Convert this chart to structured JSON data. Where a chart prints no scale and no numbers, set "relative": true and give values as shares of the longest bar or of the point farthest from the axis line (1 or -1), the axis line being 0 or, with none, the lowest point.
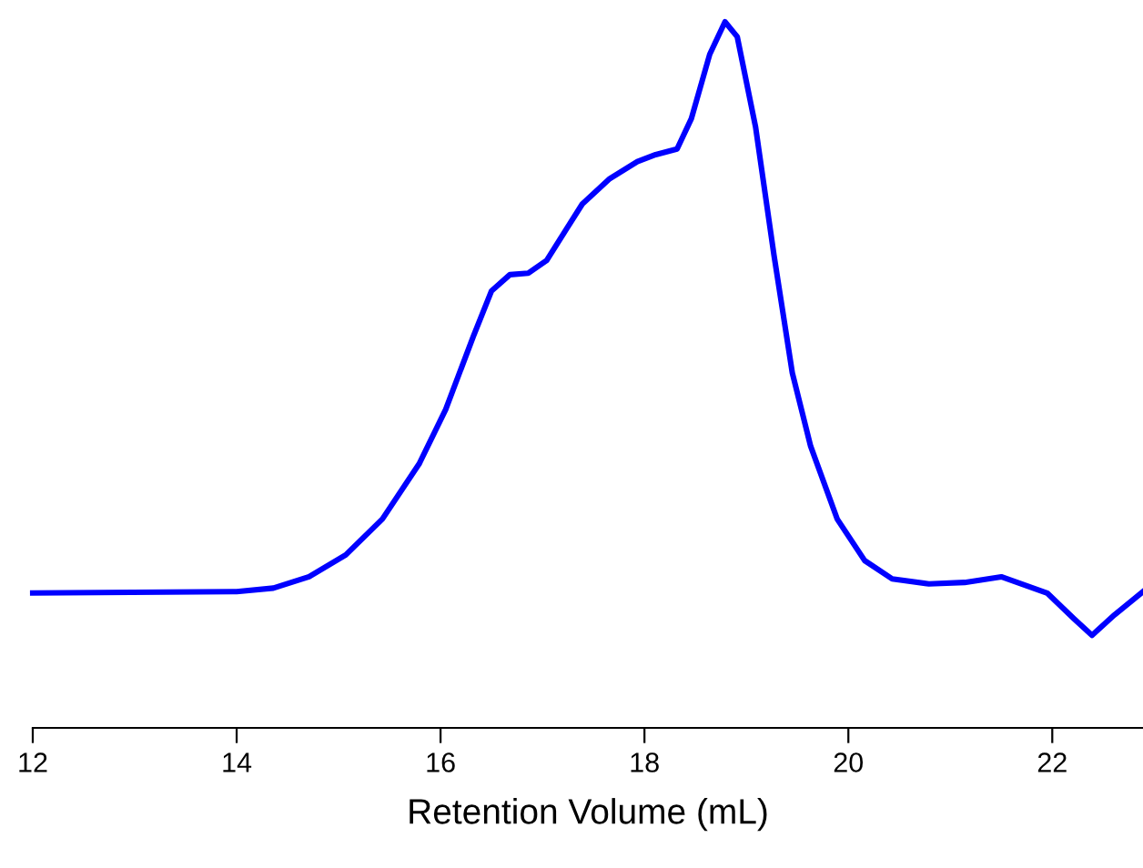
{
  "chart_data": {
    "type": "line",
    "relative": true,
    "xlabel": "Retention Volume (mL)",
    "xlim": [
      12,
      22.89
    ],
    "xticks": [
      12,
      14,
      16,
      18,
      20,
      22
    ],
    "tick_labels": "x",
    "series": [
      {
        "color": "#0000ff",
        "x": [
          12,
          14,
          14.36,
          14.71,
          15.07,
          15.43,
          15.79,
          16.05,
          16.32,
          16.5,
          16.68,
          16.86,
          17.04,
          17.21,
          17.39,
          17.66,
          17.93,
          18.11,
          18.32,
          18.46,
          18.64,
          18.79,
          18.91,
          19.09,
          19.27,
          19.45,
          19.63,
          19.89,
          20.16,
          20.43,
          20.79,
          21.14,
          21.5,
          21.95,
          22.21,
          22.39,
          22.61,
          22.89
        ],
        "values": [
          0.191,
          0.193,
          0.198,
          0.214,
          0.245,
          0.296,
          0.374,
          0.451,
          0.554,
          0.619,
          0.642,
          0.644,
          0.662,
          0.701,
          0.742,
          0.778,
          0.802,
          0.812,
          0.82,
          0.863,
          0.954,
          1,
          0.979,
          0.851,
          0.67,
          0.503,
          0.399,
          0.296,
          0.237,
          0.211,
          0.204,
          0.206,
          0.214,
          0.191,
          0.155,
          0.131,
          0.16,
          0.193
        ]
      }
    ]
  }
}
